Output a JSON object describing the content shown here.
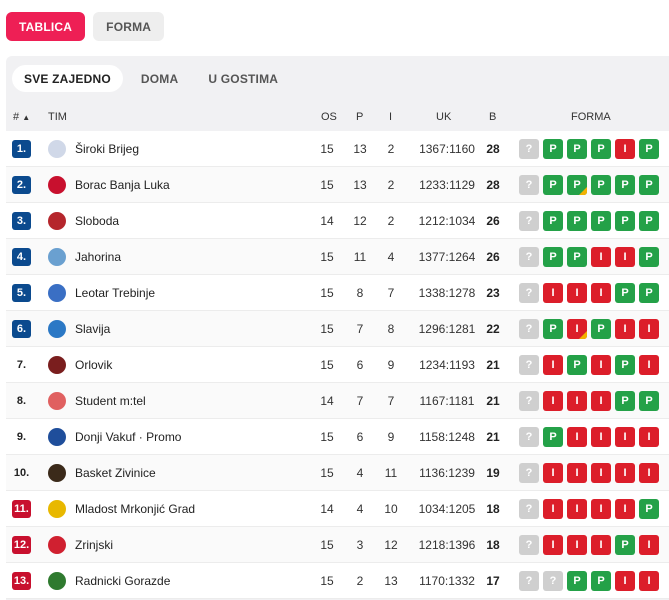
{
  "top_tabs": [
    {
      "label": "TABLICA",
      "active": true
    },
    {
      "label": "FORMA",
      "active": false
    }
  ],
  "sub_tabs": [
    {
      "label": "SVE ZAJEDNO",
      "active": true
    },
    {
      "label": "DOMA",
      "active": false
    },
    {
      "label": "U GOSTIMA",
      "active": false
    }
  ],
  "headers": {
    "rank": "#",
    "sort_arrow": "▲",
    "team": "TIM",
    "played": "OS",
    "wins": "P",
    "losses": "I",
    "points_diff": "UK",
    "points": "B",
    "form": "FORMA"
  },
  "colors": {
    "accent": "#ee1f55",
    "rank_blue": "#0b4a8e",
    "rank_red": "#c8102e",
    "win": "#24a148",
    "loss": "#dc1e2a",
    "unknown": "#cfcfcf",
    "marker": "#f2b100"
  },
  "form_legend": {
    "W": "P",
    "L": "I",
    "Q": "?"
  },
  "rows": [
    {
      "rank": "1.",
      "rank_style": "blue",
      "team": "Široki Brijeg",
      "logo_color": "#d0d8e8",
      "os": "15",
      "p": "13",
      "i": "2",
      "uk": "1367:1160",
      "b": "28",
      "form": [
        "Q",
        "W",
        "W",
        "W",
        "L",
        "W"
      ],
      "marker": -1
    },
    {
      "rank": "2.",
      "rank_style": "blue",
      "team": "Borac Banja Luka",
      "logo_color": "#c8102e",
      "os": "15",
      "p": "13",
      "i": "2",
      "uk": "1233:1129",
      "b": "28",
      "form": [
        "Q",
        "W",
        "W",
        "W",
        "W",
        "W"
      ],
      "marker": 2
    },
    {
      "rank": "3.",
      "rank_style": "blue",
      "team": "Sloboda",
      "logo_color": "#b5262c",
      "os": "14",
      "p": "12",
      "i": "2",
      "uk": "1212:1034",
      "b": "26",
      "form": [
        "Q",
        "W",
        "W",
        "W",
        "W",
        "W"
      ],
      "marker": -1
    },
    {
      "rank": "4.",
      "rank_style": "blue",
      "team": "Jahorina",
      "logo_color": "#6aa0d0",
      "os": "15",
      "p": "11",
      "i": "4",
      "uk": "1377:1264",
      "b": "26",
      "form": [
        "Q",
        "W",
        "W",
        "L",
        "L",
        "W"
      ],
      "marker": -1
    },
    {
      "rank": "5.",
      "rank_style": "blue",
      "team": "Leotar Trebinje",
      "logo_color": "#3a6fc4",
      "os": "15",
      "p": "8",
      "i": "7",
      "uk": "1338:1278",
      "b": "23",
      "form": [
        "Q",
        "L",
        "L",
        "L",
        "W",
        "W"
      ],
      "marker": -1
    },
    {
      "rank": "6.",
      "rank_style": "blue",
      "team": "Slavija",
      "logo_color": "#2b78c5",
      "os": "15",
      "p": "7",
      "i": "8",
      "uk": "1296:1281",
      "b": "22",
      "form": [
        "Q",
        "W",
        "L",
        "W",
        "L",
        "L"
      ],
      "marker": 2
    },
    {
      "rank": "7.",
      "rank_style": "plain",
      "team": "Orlovik",
      "logo_color": "#7a1e1e",
      "os": "15",
      "p": "6",
      "i": "9",
      "uk": "1234:1193",
      "b": "21",
      "form": [
        "Q",
        "L",
        "W",
        "L",
        "W",
        "L"
      ],
      "marker": -1
    },
    {
      "rank": "8.",
      "rank_style": "plain",
      "team": "Student m:tel",
      "logo_color": "#e06060",
      "os": "14",
      "p": "7",
      "i": "7",
      "uk": "1167:1181",
      "b": "21",
      "form": [
        "Q",
        "L",
        "L",
        "L",
        "W",
        "W"
      ],
      "marker": -1
    },
    {
      "rank": "9.",
      "rank_style": "plain",
      "team": "Donji Vakuf · Promo",
      "logo_color": "#1f4e9b",
      "os": "15",
      "p": "6",
      "i": "9",
      "uk": "1158:1248",
      "b": "21",
      "form": [
        "Q",
        "W",
        "L",
        "L",
        "L",
        "L"
      ],
      "marker": -1
    },
    {
      "rank": "10.",
      "rank_style": "plain",
      "team": "Basket Zivinice",
      "logo_color": "#3b2a1a",
      "os": "15",
      "p": "4",
      "i": "11",
      "uk": "1136:1239",
      "b": "19",
      "form": [
        "Q",
        "L",
        "L",
        "L",
        "L",
        "L"
      ],
      "marker": -1
    },
    {
      "rank": "11.",
      "rank_style": "red",
      "team": "Mladost Mrkonjić Grad",
      "logo_color": "#e8b800",
      "os": "14",
      "p": "4",
      "i": "10",
      "uk": "1034:1205",
      "b": "18",
      "form": [
        "Q",
        "L",
        "L",
        "L",
        "L",
        "W"
      ],
      "marker": -1
    },
    {
      "rank": "12.",
      "rank_style": "red",
      "team": "Zrinjski",
      "logo_color": "#d02030",
      "os": "15",
      "p": "3",
      "i": "12",
      "uk": "1218:1396",
      "b": "18",
      "form": [
        "Q",
        "L",
        "L",
        "L",
        "W",
        "L"
      ],
      "marker": -1
    },
    {
      "rank": "13.",
      "rank_style": "red",
      "team": "Radnicki Gorazde",
      "logo_color": "#2f7a2f",
      "os": "15",
      "p": "2",
      "i": "13",
      "uk": "1170:1332",
      "b": "17",
      "form": [
        "Q",
        "Q",
        "W",
        "W",
        "L",
        "L"
      ],
      "marker": -1
    }
  ]
}
